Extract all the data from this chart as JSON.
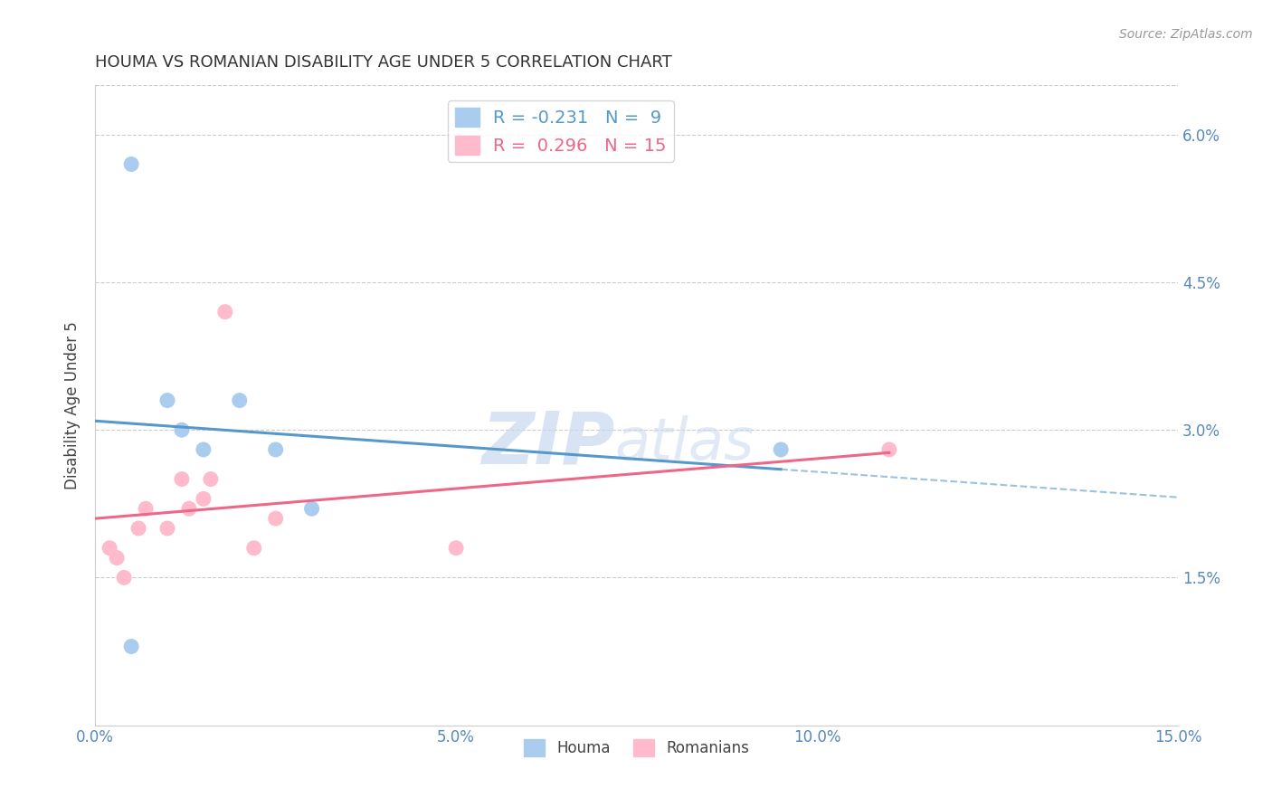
{
  "title": "HOUMA VS ROMANIAN DISABILITY AGE UNDER 5 CORRELATION CHART",
  "source_text": "Source: ZipAtlas.com",
  "ylabel": "Disability Age Under 5",
  "xlabel": "",
  "xlim": [
    0.0,
    0.15
  ],
  "ylim": [
    0.0,
    0.065
  ],
  "xticks": [
    0.0,
    0.05,
    0.1,
    0.15
  ],
  "xticklabels": [
    "0.0%",
    "5.0%",
    "10.0%",
    "15.0%"
  ],
  "yticks": [
    0.015,
    0.03,
    0.045,
    0.06
  ],
  "yticklabels": [
    "1.5%",
    "3.0%",
    "4.5%",
    "6.0%"
  ],
  "houma_points": [
    [
      0.005,
      0.057
    ],
    [
      0.01,
      0.033
    ],
    [
      0.012,
      0.03
    ],
    [
      0.015,
      0.028
    ],
    [
      0.02,
      0.033
    ],
    [
      0.025,
      0.028
    ],
    [
      0.03,
      0.022
    ],
    [
      0.095,
      0.028
    ],
    [
      0.005,
      0.008
    ]
  ],
  "romanian_points": [
    [
      0.002,
      0.018
    ],
    [
      0.003,
      0.017
    ],
    [
      0.004,
      0.015
    ],
    [
      0.006,
      0.02
    ],
    [
      0.007,
      0.022
    ],
    [
      0.01,
      0.02
    ],
    [
      0.012,
      0.025
    ],
    [
      0.013,
      0.022
    ],
    [
      0.015,
      0.023
    ],
    [
      0.016,
      0.025
    ],
    [
      0.018,
      0.042
    ],
    [
      0.022,
      0.018
    ],
    [
      0.025,
      0.021
    ],
    [
      0.05,
      0.018
    ],
    [
      0.11,
      0.028
    ]
  ],
  "houma_color": "#aaccee",
  "romanian_color": "#ffbbcc",
  "houma_line_color": "#5599cc",
  "romanian_line_color": "#ee6688",
  "houma_R": -0.231,
  "houma_N": 9,
  "romanian_R": 0.296,
  "romanian_N": 15,
  "watermark_zip": "ZIP",
  "watermark_atlas": "atlas",
  "background_color": "#ffffff",
  "grid_color": "#cccccc",
  "title_color": "#333333",
  "axis_label_color": "#444444",
  "tick_label_color": "#5588bb"
}
